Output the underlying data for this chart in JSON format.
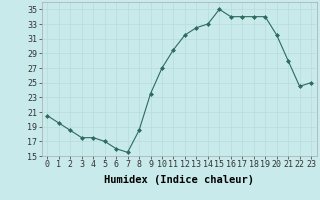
{
  "x": [
    0,
    1,
    2,
    3,
    4,
    5,
    6,
    7,
    8,
    9,
    10,
    11,
    12,
    13,
    14,
    15,
    16,
    17,
    18,
    19,
    20,
    21,
    22,
    23
  ],
  "y": [
    20.5,
    19.5,
    18.5,
    17.5,
    17.5,
    17.0,
    16.0,
    15.5,
    18.5,
    23.5,
    27.0,
    29.5,
    31.5,
    32.5,
    33.0,
    35.0,
    34.0,
    34.0,
    34.0,
    34.0,
    31.5,
    28.0,
    24.5,
    25.0
  ],
  "xlabel": "Humidex (Indice chaleur)",
  "ylim": [
    15,
    36
  ],
  "xlim": [
    -0.5,
    23.5
  ],
  "yticks": [
    15,
    17,
    19,
    21,
    23,
    25,
    27,
    29,
    31,
    33,
    35
  ],
  "xticks": [
    0,
    1,
    2,
    3,
    4,
    5,
    6,
    7,
    8,
    9,
    10,
    11,
    12,
    13,
    14,
    15,
    16,
    17,
    18,
    19,
    20,
    21,
    22,
    23
  ],
  "line_color": "#2d6b5e",
  "marker_size": 2.0,
  "bg_color": "#c8eaea",
  "grid_color": "#b8dcdc",
  "xlabel_fontsize": 7.5,
  "tick_fontsize": 6.0
}
